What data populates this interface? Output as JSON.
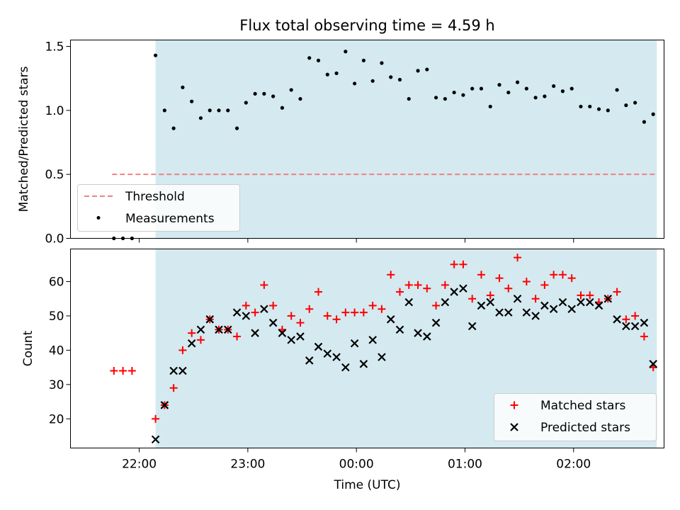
{
  "chart_data": [
    {
      "type": "scatter",
      "title": "Flux total observing time = 4.59 h",
      "xlabel": "",
      "ylabel": "Matched/Predicted stars",
      "ylim": [
        0,
        1.55
      ],
      "y_ticks": [
        "0.0",
        "0.5",
        "1.0",
        "1.5"
      ],
      "y_tick_values": [
        0,
        0.5,
        1.0,
        1.5
      ],
      "x_tick_values": [
        "22:00",
        "23:00",
        "00:00",
        "01:00",
        "02:00"
      ],
      "grid": false,
      "legend_position": "lower-left",
      "observing_window": [
        "22:09",
        "02:46"
      ],
      "series": [
        {
          "name": "Threshold",
          "kind": "dashed-line",
          "color": "#f08080",
          "x": [
            "21:45",
            "02:45"
          ],
          "y": [
            0.5,
            0.5
          ]
        },
        {
          "name": "Measurements",
          "kind": "points",
          "color": "#000000",
          "x": [
            "21:46",
            "21:51",
            "21:56",
            "22:09",
            "22:14",
            "22:19",
            "22:24",
            "22:29",
            "22:34",
            "22:39",
            "22:44",
            "22:49",
            "22:54",
            "22:59",
            "23:04",
            "23:09",
            "23:14",
            "23:19",
            "23:24",
            "23:29",
            "23:34",
            "23:39",
            "23:44",
            "23:49",
            "23:54",
            "23:59",
            "00:04",
            "00:09",
            "00:14",
            "00:19",
            "00:24",
            "00:29",
            "00:34",
            "00:39",
            "00:44",
            "00:49",
            "00:54",
            "00:59",
            "01:04",
            "01:09",
            "01:14",
            "01:19",
            "01:24",
            "01:29",
            "01:34",
            "01:39",
            "01:44",
            "01:49",
            "01:54",
            "01:59",
            "02:04",
            "02:09",
            "02:14",
            "02:19",
            "02:24",
            "02:29",
            "02:34",
            "02:39",
            "02:44"
          ],
          "y": [
            0.0,
            0.0,
            0.0,
            1.43,
            1.0,
            0.86,
            1.18,
            1.07,
            0.94,
            1.0,
            1.0,
            1.0,
            0.86,
            1.06,
            1.13,
            1.13,
            1.11,
            1.02,
            1.16,
            1.09,
            1.41,
            1.39,
            1.28,
            1.29,
            1.46,
            1.21,
            1.39,
            1.23,
            1.37,
            1.26,
            1.24,
            1.09,
            1.31,
            1.32,
            1.1,
            1.09,
            1.14,
            1.12,
            1.17,
            1.17,
            1.03,
            1.2,
            1.14,
            1.22,
            1.17,
            1.1,
            1.11,
            1.19,
            1.15,
            1.17,
            1.03,
            1.03,
            1.01,
            1.0,
            1.16,
            1.04,
            1.06,
            0.91,
            0.97
          ]
        }
      ]
    },
    {
      "type": "scatter",
      "title": "",
      "xlabel": "Time (UTC)",
      "ylabel": "Count",
      "ylim": [
        11.5,
        69.5
      ],
      "y_ticks": [
        "20",
        "30",
        "40",
        "50",
        "60"
      ],
      "y_tick_values": [
        20,
        30,
        40,
        50,
        60
      ],
      "x_ticks": [
        "22:00",
        "23:00",
        "00:00",
        "01:00",
        "02:00"
      ],
      "x_tick_values": [
        "22:00",
        "23:00",
        "00:00",
        "01:00",
        "02:00"
      ],
      "grid": false,
      "legend_position": "lower-right",
      "observing_window": [
        "22:09",
        "02:46"
      ],
      "series": [
        {
          "name": "Matched stars",
          "marker": "plus",
          "color": "#ff0000",
          "x": [
            "21:46",
            "21:51",
            "21:56",
            "22:09",
            "22:14",
            "22:19",
            "22:24",
            "22:29",
            "22:34",
            "22:39",
            "22:44",
            "22:49",
            "22:54",
            "22:59",
            "23:04",
            "23:09",
            "23:14",
            "23:19",
            "23:24",
            "23:29",
            "23:34",
            "23:39",
            "23:44",
            "23:49",
            "23:54",
            "23:59",
            "00:04",
            "00:09",
            "00:14",
            "00:19",
            "00:24",
            "00:29",
            "00:34",
            "00:39",
            "00:44",
            "00:49",
            "00:54",
            "00:59",
            "01:04",
            "01:09",
            "01:14",
            "01:19",
            "01:24",
            "01:29",
            "01:34",
            "01:39",
            "01:44",
            "01:49",
            "01:54",
            "01:59",
            "02:04",
            "02:09",
            "02:14",
            "02:19",
            "02:24",
            "02:29",
            "02:34",
            "02:39",
            "02:44"
          ],
          "y": [
            34,
            34,
            34,
            20,
            24,
            29,
            40,
            45,
            43,
            49,
            46,
            46,
            44,
            53,
            51,
            59,
            53,
            46,
            50,
            48,
            52,
            57,
            50,
            49,
            51,
            51,
            51,
            53,
            52,
            62,
            57,
            59,
            59,
            58,
            53,
            59,
            65,
            65,
            55,
            62,
            56,
            61,
            58,
            67,
            60,
            55,
            59,
            62,
            62,
            61,
            56,
            56,
            54,
            55,
            57,
            49,
            50,
            44,
            35
          ]
        },
        {
          "name": "Predicted stars",
          "marker": "x",
          "color": "#000000",
          "x": [
            "22:09",
            "22:14",
            "22:19",
            "22:24",
            "22:29",
            "22:34",
            "22:39",
            "22:44",
            "22:49",
            "22:54",
            "22:59",
            "23:04",
            "23:09",
            "23:14",
            "23:19",
            "23:24",
            "23:29",
            "23:34",
            "23:39",
            "23:44",
            "23:49",
            "23:54",
            "23:59",
            "00:04",
            "00:09",
            "00:14",
            "00:19",
            "00:24",
            "00:29",
            "00:34",
            "00:39",
            "00:44",
            "00:49",
            "00:54",
            "00:59",
            "01:04",
            "01:09",
            "01:14",
            "01:19",
            "01:24",
            "01:29",
            "01:34",
            "01:39",
            "01:44",
            "01:49",
            "01:54",
            "01:59",
            "02:04",
            "02:09",
            "02:14",
            "02:19",
            "02:24",
            "02:29",
            "02:34",
            "02:39",
            "02:44"
          ],
          "y": [
            14,
            24,
            34,
            34,
            42,
            46,
            49,
            46,
            46,
            51,
            50,
            45,
            52,
            48,
            45,
            43,
            44,
            37,
            41,
            39,
            38,
            35,
            42,
            36,
            43,
            38,
            49,
            46,
            54,
            45,
            44,
            48,
            54,
            57,
            58,
            47,
            53,
            54,
            51,
            51,
            55,
            51,
            50,
            53,
            52,
            54,
            52,
            54,
            54,
            53,
            55,
            49,
            47,
            47,
            48,
            36
          ]
        }
      ]
    }
  ]
}
